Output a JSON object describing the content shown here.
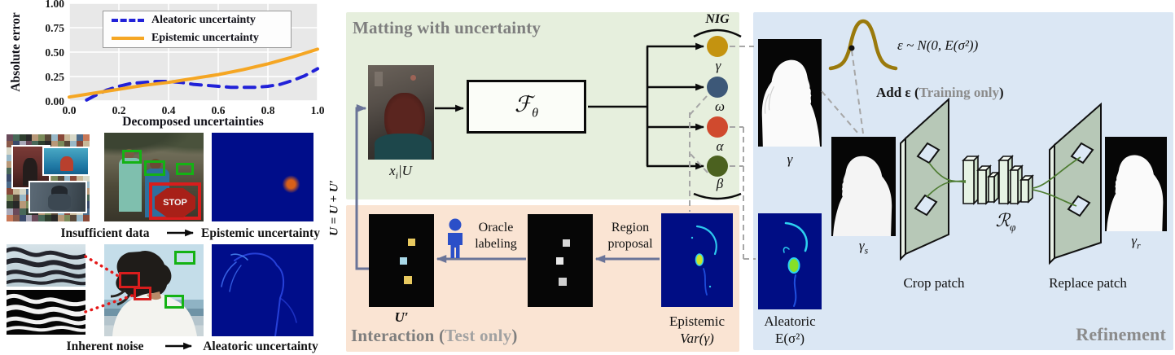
{
  "colors": {
    "panel_green": "#e6efdd",
    "panel_orange": "#fae4d3",
    "panel_blue": "#dbe7f4",
    "flow_arrow": "#6a7498",
    "dashed_line": "#a6a6a6",
    "chart_blue": "#2121d8",
    "chart_orange": "#f5a623",
    "circle_gamma": "#c49310",
    "circle_omega": "#3d5878",
    "circle_alpha": "#d04a2e",
    "circle_beta": "#4b611f",
    "gaussian_curve": "#9a7a0c",
    "green_box": "#14b214",
    "red_box": "#d81d1d",
    "heatmap_bg": "#000d8a",
    "person_icon": "#2b4fc8",
    "refine_plane": "#b7c8b7",
    "refine_slab": "#e6f3e4",
    "refine_curve": "#4f7d33"
  },
  "chart_data": {
    "type": "line",
    "title": "",
    "xlabel": "Decomposed uncertainties",
    "ylabel": "Absolute error",
    "xlim": [
      0,
      1
    ],
    "ylim": [
      0,
      1
    ],
    "xticks": [
      0.0,
      0.2,
      0.4,
      0.6,
      0.8,
      1.0
    ],
    "yticks": [
      0.0,
      0.25,
      0.5,
      0.75,
      1.0
    ],
    "grid": true,
    "legend_position": "upper center",
    "series": [
      {
        "name": "Aleatoric uncertainty",
        "color": "#2121d8",
        "style": "dashed",
        "x": [
          0.07,
          0.1,
          0.15,
          0.2,
          0.25,
          0.3,
          0.35,
          0.4,
          0.45,
          0.5,
          0.55,
          0.6,
          0.65,
          0.7,
          0.75,
          0.8,
          0.85,
          0.9,
          0.95,
          1.0
        ],
        "y": [
          0.01,
          0.05,
          0.11,
          0.15,
          0.18,
          0.19,
          0.2,
          0.2,
          0.19,
          0.17,
          0.16,
          0.15,
          0.14,
          0.14,
          0.14,
          0.15,
          0.17,
          0.21,
          0.26,
          0.33
        ]
      },
      {
        "name": "Epistemic uncertainty",
        "color": "#f5a623",
        "style": "solid",
        "x": [
          0.0,
          0.1,
          0.2,
          0.3,
          0.4,
          0.5,
          0.6,
          0.7,
          0.8,
          0.9,
          1.0
        ],
        "y": [
          0.04,
          0.08,
          0.12,
          0.16,
          0.19,
          0.23,
          0.27,
          0.32,
          0.38,
          0.45,
          0.53
        ]
      }
    ]
  },
  "left_column": {
    "row1": {
      "source": "Insufficient data",
      "result": "Epistemic uncertainty"
    },
    "row2": {
      "source": "Inherent noise",
      "result": "Aleatoric uncertainty"
    },
    "stop_sign": "STOP"
  },
  "feedback_equation": "U = U + U′",
  "matting": {
    "title": "Matting with uncertainty",
    "input_sym": "x",
    "input_sub": "i",
    "input_rest": "|U",
    "net_sym": "ℱ",
    "net_sub": "θ",
    "nig": "NIG",
    "out_gamma": "γ",
    "out_omega": "ω",
    "out_alpha": "α",
    "out_beta": "β"
  },
  "interaction": {
    "title_open": "Interaction (",
    "title_muted": "Test only",
    "title_close": ")",
    "uprime": "U′",
    "oracle1": "Oracle",
    "oracle2": "labeling",
    "region1": "Region",
    "region2": "proposal",
    "epi1": "Epistemic",
    "epi2": "Var(γ)"
  },
  "refinement": {
    "title": "Refinement",
    "gamma": "γ",
    "noise": "ε ~ N(0, E(σ²))",
    "add_open": "Add ε (",
    "add_muted": "Training only",
    "add_close": ")",
    "gs_sym": "γ",
    "gs_sub": "s",
    "al1": "Aleatoric",
    "al2": "E(σ²)",
    "crop": "Crop patch",
    "net_sym": "ℛ",
    "net_sub": "φ",
    "replace": "Replace patch",
    "gr_sym": "γ",
    "gr_sub": "r"
  },
  "collage_palette": [
    "#8a5a4a",
    "#b89878",
    "#4a6a8a",
    "#2e3e2e",
    "#c8b898",
    "#6a4a5a",
    "#98b8c8",
    "#3a4a6a",
    "#7a8a5a",
    "#c87858",
    "#282828",
    "#d8d8c8",
    "#486858",
    "#884838",
    "#a8a8b8",
    "#584838"
  ]
}
